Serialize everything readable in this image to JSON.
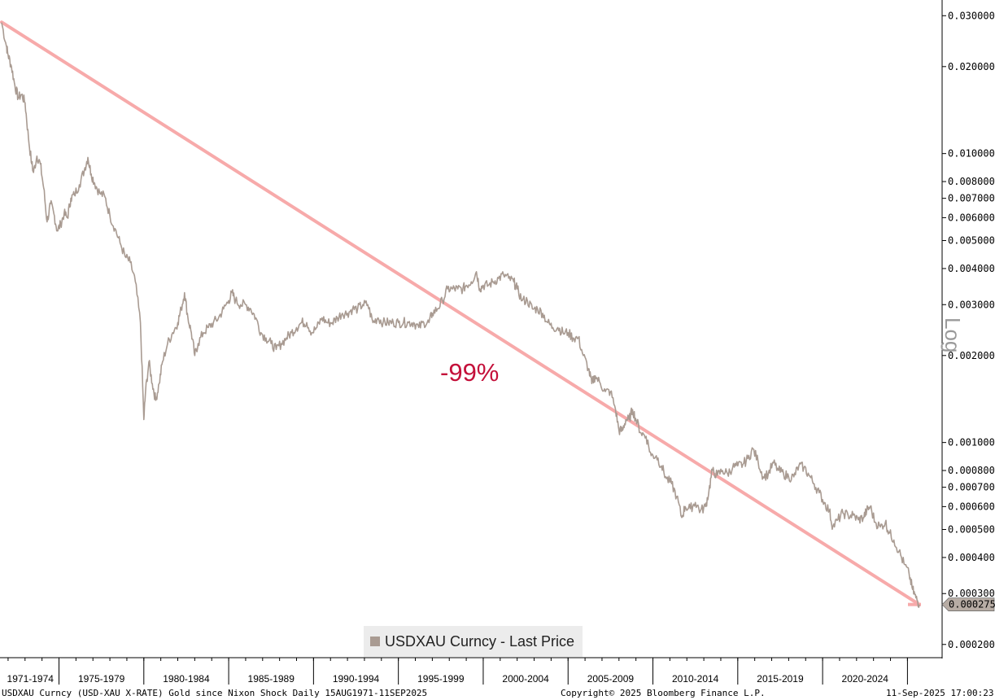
{
  "chart_data": {
    "type": "line",
    "title": "Gold since Nixon Shock",
    "scale": "log",
    "ylim": [
      0.00018,
      0.034
    ],
    "y_ticks": [
      "0.030000",
      "0.020000",
      "0.010000",
      "0.008000",
      "0.007000",
      "0.006000",
      "0.005000",
      "0.004000",
      "0.003000",
      "0.002000",
      "0.001000",
      "0.000800",
      "0.000700",
      "0.000600",
      "0.000500",
      "0.000400",
      "0.000300",
      "0.000200"
    ],
    "y_tick_values": [
      0.03,
      0.02,
      0.01,
      0.008,
      0.007,
      0.006,
      0.005,
      0.004,
      0.003,
      0.002,
      0.001,
      0.0008,
      0.0007,
      0.0006,
      0.0005,
      0.0004,
      0.0003,
      0.0002
    ],
    "x_categories": [
      "1971-1974",
      "1975-1979",
      "1980-1984",
      "1985-1989",
      "1990-1994",
      "1995-1999",
      "2000-2004",
      "2005-2009",
      "2010-2014",
      "2015-2019",
      "2020-2024"
    ],
    "x_range": [
      1971.62,
      2025.7
    ],
    "axis_label": "Log",
    "last_price_label": "0.000275",
    "last_price": 0.000275,
    "annotation": "-99%",
    "trendline": {
      "from": [
        1971.62,
        0.0285
      ],
      "to": [
        2025.7,
        0.000275
      ],
      "color": "#f7aaaa"
    },
    "series": [
      {
        "name": "USDXAU Curncy - Last Price",
        "color": "#a99b92",
        "points": [
          [
            1971.62,
            0.0284
          ],
          [
            1971.9,
            0.0236
          ],
          [
            1972.0,
            0.022
          ],
          [
            1972.2,
            0.02
          ],
          [
            1972.4,
            0.0172
          ],
          [
            1972.6,
            0.0156
          ],
          [
            1972.8,
            0.016
          ],
          [
            1973.0,
            0.015
          ],
          [
            1973.2,
            0.0113
          ],
          [
            1973.4,
            0.0092
          ],
          [
            1973.5,
            0.0086
          ],
          [
            1973.7,
            0.0098
          ],
          [
            1973.9,
            0.0092
          ],
          [
            1974.1,
            0.0076
          ],
          [
            1974.3,
            0.0058
          ],
          [
            1974.5,
            0.0067
          ],
          [
            1974.7,
            0.0062
          ],
          [
            1974.9,
            0.0054
          ],
          [
            1975.1,
            0.0057
          ],
          [
            1975.3,
            0.0062
          ],
          [
            1975.5,
            0.006
          ],
          [
            1975.7,
            0.007
          ],
          [
            1975.9,
            0.0072
          ],
          [
            1976.2,
            0.0078
          ],
          [
            1976.5,
            0.0088
          ],
          [
            1976.7,
            0.0097
          ],
          [
            1976.9,
            0.0085
          ],
          [
            1977.1,
            0.0079
          ],
          [
            1977.4,
            0.0073
          ],
          [
            1977.7,
            0.0071
          ],
          [
            1978.0,
            0.0061
          ],
          [
            1978.3,
            0.0055
          ],
          [
            1978.6,
            0.0049
          ],
          [
            1978.9,
            0.0044
          ],
          [
            1979.2,
            0.0042
          ],
          [
            1979.5,
            0.0036
          ],
          [
            1979.8,
            0.0026
          ],
          [
            1980.0,
            0.0012
          ],
          [
            1980.1,
            0.0015
          ],
          [
            1980.3,
            0.0019
          ],
          [
            1980.5,
            0.0016
          ],
          [
            1980.7,
            0.0014
          ],
          [
            1980.9,
            0.0016
          ],
          [
            1981.1,
            0.0019
          ],
          [
            1981.4,
            0.0022
          ],
          [
            1981.7,
            0.0024
          ],
          [
            1982.0,
            0.0026
          ],
          [
            1982.2,
            0.0029
          ],
          [
            1982.4,
            0.0033
          ],
          [
            1982.6,
            0.0027
          ],
          [
            1982.8,
            0.0024
          ],
          [
            1983.0,
            0.002
          ],
          [
            1983.2,
            0.0022
          ],
          [
            1983.5,
            0.0024
          ],
          [
            1983.8,
            0.0025
          ],
          [
            1984.1,
            0.0026
          ],
          [
            1984.4,
            0.0027
          ],
          [
            1984.7,
            0.0029
          ],
          [
            1985.0,
            0.0031
          ],
          [
            1985.2,
            0.0033
          ],
          [
            1985.4,
            0.0031
          ],
          [
            1985.7,
            0.003
          ],
          [
            1986.0,
            0.003
          ],
          [
            1986.3,
            0.0029
          ],
          [
            1986.6,
            0.0027
          ],
          [
            1986.9,
            0.0024
          ],
          [
            1987.2,
            0.0023
          ],
          [
            1987.5,
            0.0022
          ],
          [
            1987.8,
            0.0021
          ],
          [
            1988.1,
            0.0022
          ],
          [
            1988.4,
            0.0023
          ],
          [
            1988.7,
            0.0024
          ],
          [
            1989.0,
            0.0025
          ],
          [
            1989.3,
            0.0026
          ],
          [
            1989.6,
            0.0026
          ],
          [
            1989.9,
            0.0024
          ],
          [
            1990.2,
            0.0025
          ],
          [
            1990.5,
            0.0027
          ],
          [
            1990.8,
            0.0026
          ],
          [
            1991.1,
            0.0026
          ],
          [
            1991.4,
            0.0027
          ],
          [
            1991.7,
            0.0028
          ],
          [
            1992.0,
            0.0028
          ],
          [
            1992.3,
            0.0029
          ],
          [
            1992.6,
            0.0029
          ],
          [
            1992.9,
            0.003
          ],
          [
            1993.2,
            0.003
          ],
          [
            1993.5,
            0.0026
          ],
          [
            1993.8,
            0.0027
          ],
          [
            1994.1,
            0.0026
          ],
          [
            1994.4,
            0.0026
          ],
          [
            1994.7,
            0.0026
          ],
          [
            1995.0,
            0.0026
          ],
          [
            1995.3,
            0.0026
          ],
          [
            1995.6,
            0.0026
          ],
          [
            1995.9,
            0.0026
          ],
          [
            1996.2,
            0.0025
          ],
          [
            1996.5,
            0.0026
          ],
          [
            1996.8,
            0.0026
          ],
          [
            1997.0,
            0.0028
          ],
          [
            1997.3,
            0.0029
          ],
          [
            1997.6,
            0.0031
          ],
          [
            1997.9,
            0.0034
          ],
          [
            1998.2,
            0.0034
          ],
          [
            1998.5,
            0.0034
          ],
          [
            1998.8,
            0.0034
          ],
          [
            1999.0,
            0.0035
          ],
          [
            1999.3,
            0.0036
          ],
          [
            1999.6,
            0.0039
          ],
          [
            1999.8,
            0.0034
          ],
          [
            2000.0,
            0.0035
          ],
          [
            2000.3,
            0.0035
          ],
          [
            2000.6,
            0.0036
          ],
          [
            2000.9,
            0.0037
          ],
          [
            2001.2,
            0.0038
          ],
          [
            2001.5,
            0.0037
          ],
          [
            2001.8,
            0.0036
          ],
          [
            2002.0,
            0.0034
          ],
          [
            2002.3,
            0.0031
          ],
          [
            2002.6,
            0.0031
          ],
          [
            2002.9,
            0.0029
          ],
          [
            2003.2,
            0.0029
          ],
          [
            2003.5,
            0.0028
          ],
          [
            2003.8,
            0.0026
          ],
          [
            2004.1,
            0.0025
          ],
          [
            2004.4,
            0.0025
          ],
          [
            2004.7,
            0.0024
          ],
          [
            2005.0,
            0.0024
          ],
          [
            2005.3,
            0.0023
          ],
          [
            2005.6,
            0.0023
          ],
          [
            2005.9,
            0.002
          ],
          [
            2006.2,
            0.0018
          ],
          [
            2006.4,
            0.0016
          ],
          [
            2006.6,
            0.0017
          ],
          [
            2006.9,
            0.0016
          ],
          [
            2007.2,
            0.0015
          ],
          [
            2007.5,
            0.0015
          ],
          [
            2007.8,
            0.0013
          ],
          [
            2008.0,
            0.0011
          ],
          [
            2008.2,
            0.0011
          ],
          [
            2008.4,
            0.0012
          ],
          [
            2008.6,
            0.0012
          ],
          [
            2008.8,
            0.0013
          ],
          [
            2009.0,
            0.0012
          ],
          [
            2009.3,
            0.00108
          ],
          [
            2009.6,
            0.00105
          ],
          [
            2009.9,
            0.0009
          ],
          [
            2010.2,
            0.0009
          ],
          [
            2010.5,
            0.00083
          ],
          [
            2010.8,
            0.00075
          ],
          [
            2011.1,
            0.00072
          ],
          [
            2011.4,
            0.00065
          ],
          [
            2011.7,
            0.00055
          ],
          [
            2011.9,
            0.0006
          ],
          [
            2012.2,
            0.00059
          ],
          [
            2012.5,
            0.00062
          ],
          [
            2012.8,
            0.00058
          ],
          [
            2013.1,
            0.0006
          ],
          [
            2013.3,
            0.00068
          ],
          [
            2013.5,
            0.0008
          ],
          [
            2013.8,
            0.00077
          ],
          [
            2014.1,
            0.0008
          ],
          [
            2014.4,
            0.00078
          ],
          [
            2014.7,
            0.00082
          ],
          [
            2015.0,
            0.00083
          ],
          [
            2015.3,
            0.00084
          ],
          [
            2015.6,
            0.00088
          ],
          [
            2015.9,
            0.00095
          ],
          [
            2016.2,
            0.00086
          ],
          [
            2016.5,
            0.00076
          ],
          [
            2016.8,
            0.00078
          ],
          [
            2017.1,
            0.00085
          ],
          [
            2017.4,
            0.0008
          ],
          [
            2017.7,
            0.00078
          ],
          [
            2018.0,
            0.00076
          ],
          [
            2018.3,
            0.00076
          ],
          [
            2018.6,
            0.00083
          ],
          [
            2018.9,
            0.00082
          ],
          [
            2019.2,
            0.00077
          ],
          [
            2019.5,
            0.00072
          ],
          [
            2019.8,
            0.00067
          ],
          [
            2020.1,
            0.00062
          ],
          [
            2020.4,
            0.00058
          ],
          [
            2020.6,
            0.00051
          ],
          [
            2020.9,
            0.00054
          ],
          [
            2021.2,
            0.00057
          ],
          [
            2021.5,
            0.00056
          ],
          [
            2021.8,
            0.00056
          ],
          [
            2022.1,
            0.00054
          ],
          [
            2022.4,
            0.00055
          ],
          [
            2022.6,
            0.00058
          ],
          [
            2022.8,
            0.0006
          ],
          [
            2023.1,
            0.00053
          ],
          [
            2023.4,
            0.00051
          ],
          [
            2023.7,
            0.00053
          ],
          [
            2023.9,
            0.00049
          ],
          [
            2024.2,
            0.00046
          ],
          [
            2024.5,
            0.00042
          ],
          [
            2024.8,
            0.00038
          ],
          [
            2025.1,
            0.00035
          ],
          [
            2025.3,
            0.00031
          ],
          [
            2025.5,
            0.00029
          ],
          [
            2025.7,
            0.000275
          ]
        ]
      }
    ]
  },
  "legend": {
    "label": "USDXAU Curncy - Last Price"
  },
  "footer": {
    "left": "USDXAU Curncy (USD-XAU X-RATE) Gold since Nixon Shock  Daily 15AUG1971-11SEP2025",
    "center": "Copyright© 2025 Bloomberg Finance L.P.",
    "right": "11-Sep-2025 17:00:23"
  }
}
